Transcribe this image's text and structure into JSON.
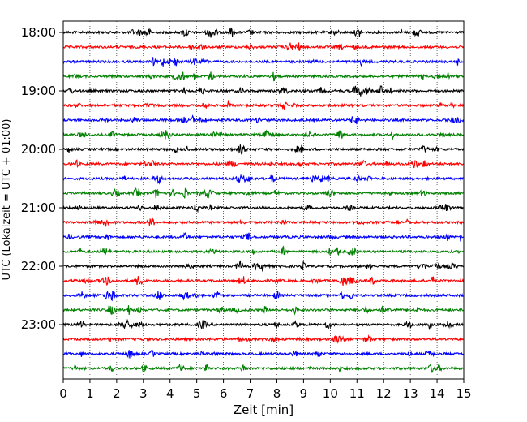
{
  "chart_data": {
    "type": "line",
    "title": "",
    "xlabel": "Zeit  [min]",
    "ylabel": "UTC (Lokalzeit = UTC + 01:00)",
    "xlim": [
      0,
      15
    ],
    "x_ticks": [
      0,
      1,
      2,
      3,
      4,
      5,
      6,
      7,
      8,
      9,
      10,
      11,
      12,
      13,
      14,
      15
    ],
    "x_grid": true,
    "x_grid_style": "dotted",
    "y_ticks": [
      "18:00",
      "19:00",
      "20:00",
      "21:00",
      "22:00",
      "23:00"
    ],
    "trace_start": "18:00",
    "trace_interval_min": 15,
    "trace_count": 24,
    "trace_colors": [
      "#000000",
      "#ff0000",
      "#0000ff",
      "#008000"
    ],
    "legend": "none"
  }
}
